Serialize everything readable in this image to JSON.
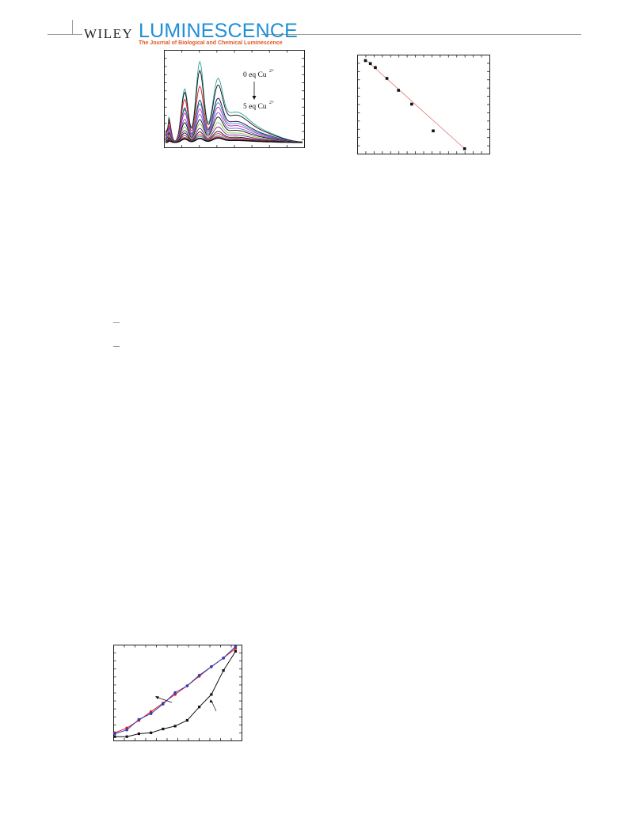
{
  "header": {
    "publisher": "WILEY",
    "journal": "LUMINESCENCE",
    "journal_subtitle": "The Journal of Biological and Chemical Luminescence",
    "colors": {
      "journal": "#1f8fd6",
      "subtitle": "#e0592a"
    }
  },
  "figures": {
    "spectra": {
      "annotation_top": "0 eq Cu",
      "annotation_top_sup": "2+",
      "annotation_bottom": "5 eq Cu",
      "annotation_bottom_sup": "2+"
    }
  },
  "chart_data": [
    {
      "type": "line",
      "series_colors": [
        "#2aa198",
        "#111111",
        "#e31a1c",
        "#1a237e",
        "#26a69a",
        "#d81bd8",
        "#5c6bc0",
        "#111111",
        "#8bc34a",
        "#7b1fa2",
        "#111111",
        "#e31a1c",
        "#1e88e5",
        "#e31a1c",
        "#111111"
      ],
      "shape": {
        "peak_positions": [
          0.14,
          0.25,
          0.38
        ],
        "series_peak_heights": [
          [
            0.62,
            0.92,
            0.58
          ],
          [
            0.58,
            0.82,
            0.52
          ],
          [
            0.5,
            0.64,
            0.4
          ],
          [
            0.4,
            0.48,
            0.4
          ],
          [
            0.38,
            0.44,
            0.36
          ],
          [
            0.34,
            0.38,
            0.32
          ],
          [
            0.27,
            0.32,
            0.27
          ],
          [
            0.23,
            0.26,
            0.23
          ],
          [
            0.18,
            0.21,
            0.18
          ],
          [
            0.14,
            0.16,
            0.14
          ],
          [
            0.11,
            0.12,
            0.1
          ],
          [
            0.08,
            0.09,
            0.08
          ],
          [
            0.06,
            0.07,
            0.06
          ],
          [
            0.05,
            0.05,
            0.05
          ],
          [
            0.04,
            0.045,
            0.04
          ]
        ]
      },
      "grid": false
    },
    {
      "type": "scatter",
      "x": [
        0.5,
        0.8,
        1.1,
        1.8,
        2.5,
        3.3,
        4.6,
        6.5
      ],
      "y": [
        0.94,
        0.91,
        0.87,
        0.76,
        0.64,
        0.5,
        0.23,
        0.05
      ],
      "fit_line": {
        "color": "#e87070",
        "x": [
          0.5,
          6.5
        ],
        "y": [
          0.95,
          0.05
        ]
      },
      "marker_color": "#111111",
      "xlim": [
        0,
        8
      ],
      "ylim": [
        0,
        1
      ],
      "grid": false
    },
    {
      "type": "line",
      "x": [
        0.1,
        0.9,
        1.7,
        2.5,
        3.3,
        4.1,
        4.9,
        5.7,
        6.5,
        7.3,
        8.1
      ],
      "series": [
        {
          "color": "#e31a1c",
          "y": [
            0.08,
            0.13,
            0.21,
            0.3,
            0.39,
            0.48,
            0.57,
            0.67,
            0.77,
            0.86,
            0.96
          ],
          "marker": "circle"
        },
        {
          "color": "#2f3fb8",
          "y": [
            0.07,
            0.11,
            0.22,
            0.28,
            0.38,
            0.5,
            0.57,
            0.68,
            0.77,
            0.86,
            0.98
          ],
          "marker": "circle"
        },
        {
          "color": "#111111",
          "y": [
            0.04,
            0.04,
            0.07,
            0.08,
            0.12,
            0.15,
            0.21,
            0.35,
            0.48,
            0.73,
            0.93
          ],
          "marker": "square"
        }
      ],
      "xlim": [
        0,
        8.5
      ],
      "ylim": [
        0,
        1
      ],
      "grid": false
    }
  ]
}
